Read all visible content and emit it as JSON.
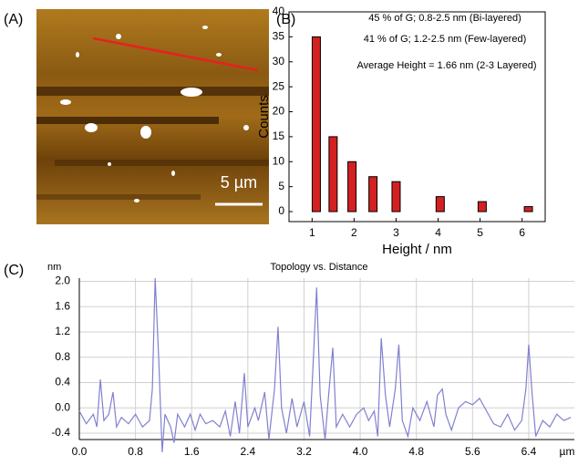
{
  "image": {
    "label": "(A)",
    "scale_bar": "5 µm"
  },
  "chart_data": [
    {
      "type": "bar",
      "label": "(B)",
      "xlabel": "Height / nm",
      "ylabel": "Counts",
      "annotations": [
        "45 % of G; 0.8-2.5 nm (Bi-layered)",
        "41 % of G; 1.2-2.5 nm (Few-layered)",
        "Average Height = 1.66 nm (2-3 Layered)"
      ],
      "x": [
        1.1,
        1.5,
        1.95,
        2.45,
        3.0,
        4.05,
        5.05,
        6.15
      ],
      "values": [
        35,
        15,
        10,
        7,
        6,
        3,
        2,
        1
      ],
      "color": "#d42020",
      "xlim": [
        0.45,
        6.55
      ],
      "xticks": [
        1,
        2,
        3,
        4,
        5,
        6
      ],
      "ylim": [
        -2,
        40
      ],
      "yticks": [
        0,
        5,
        10,
        15,
        20,
        25,
        30,
        35,
        40
      ]
    },
    {
      "type": "line",
      "label": "(C)",
      "title": "Topology vs. Distance",
      "xlabel": "µm",
      "ylabel": "nm",
      "color": "#8080d0",
      "grid": true,
      "x": [
        0.0,
        0.1,
        0.2,
        0.25,
        0.3,
        0.35,
        0.42,
        0.48,
        0.53,
        0.6,
        0.7,
        0.8,
        0.9,
        1.0,
        1.04,
        1.08,
        1.13,
        1.18,
        1.22,
        1.3,
        1.35,
        1.4,
        1.5,
        1.58,
        1.65,
        1.72,
        1.8,
        1.9,
        2.0,
        2.08,
        2.15,
        2.22,
        2.28,
        2.35,
        2.4,
        2.5,
        2.55,
        2.64,
        2.7,
        2.78,
        2.83,
        2.88,
        2.95,
        3.03,
        3.1,
        3.2,
        3.28,
        3.33,
        3.38,
        3.43,
        3.5,
        3.55,
        3.61,
        3.66,
        3.75,
        3.85,
        3.95,
        4.05,
        4.12,
        4.2,
        4.25,
        4.3,
        4.36,
        4.42,
        4.5,
        4.55,
        4.6,
        4.68,
        4.75,
        4.85,
        4.95,
        5.05,
        5.1,
        5.17,
        5.22,
        5.3,
        5.4,
        5.5,
        5.6,
        5.7,
        5.8,
        5.9,
        6.0,
        6.1,
        6.2,
        6.3,
        6.36,
        6.4,
        6.45,
        6.5,
        6.6,
        6.7,
        6.8,
        6.9,
        7.0
      ],
      "values": [
        -0.05,
        -0.25,
        -0.1,
        -0.3,
        0.45,
        -0.2,
        -0.1,
        0.25,
        -0.3,
        -0.15,
        -0.25,
        -0.1,
        -0.3,
        -0.2,
        0.3,
        2.05,
        0.8,
        -0.7,
        -0.1,
        -0.3,
        -0.55,
        -0.1,
        -0.3,
        -0.1,
        -0.35,
        -0.1,
        -0.25,
        -0.2,
        -0.3,
        -0.05,
        -0.45,
        0.1,
        -0.4,
        0.55,
        -0.3,
        0.0,
        -0.2,
        0.25,
        -0.5,
        0.3,
        1.28,
        0.0,
        -0.4,
        0.15,
        -0.3,
        0.1,
        -0.45,
        0.7,
        1.9,
        0.2,
        -0.5,
        0.2,
        0.95,
        -0.3,
        -0.1,
        -0.3,
        -0.1,
        0.0,
        -0.2,
        -0.05,
        -0.45,
        1.1,
        0.2,
        -0.3,
        0.3,
        1.0,
        -0.2,
        -0.45,
        0.0,
        -0.2,
        0.1,
        -0.3,
        0.2,
        0.3,
        -0.1,
        -0.35,
        0.0,
        0.1,
        0.05,
        0.15,
        -0.05,
        -0.25,
        -0.3,
        -0.1,
        -0.35,
        -0.2,
        0.3,
        1.0,
        0.2,
        -0.45,
        -0.2,
        -0.3,
        -0.1,
        -0.2,
        -0.15
      ],
      "xlim": [
        0,
        7.05
      ],
      "xticks": [
        {
          "value": 0,
          "label": "0.0"
        },
        0.8,
        1.6,
        2.4,
        3.2,
        {
          "value": 4,
          "label": "4.0"
        },
        4.8,
        5.6,
        6.4
      ],
      "ylim": [
        -0.5,
        2.05
      ],
      "yticks": [
        -0.4,
        {
          "value": 0,
          "label": "0.0"
        },
        0.4,
        0.8,
        1.2,
        1.6,
        {
          "value": 2,
          "label": "2.0"
        }
      ]
    }
  ]
}
